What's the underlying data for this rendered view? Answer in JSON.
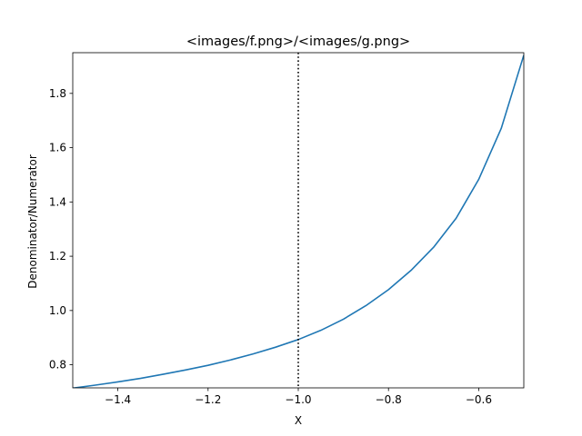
{
  "chart_data": {
    "type": "line",
    "title": "<images/f.png>/<images/g.png>",
    "xlabel": "X",
    "ylabel": "Denominator/Numerator",
    "xlim": [
      -1.5,
      -0.5
    ],
    "ylim": [
      0.715,
      1.95
    ],
    "xticks": [
      -1.4,
      -1.2,
      -1.0,
      -0.8,
      -0.6
    ],
    "xtick_labels": [
      "−1.4",
      "−1.2",
      "−1.0",
      "−0.8",
      "−0.6"
    ],
    "yticks": [
      0.8,
      1.0,
      1.2,
      1.4,
      1.6,
      1.8
    ],
    "ytick_labels": [
      "0.8",
      "1.0",
      "1.2",
      "1.4",
      "1.6",
      "1.8"
    ],
    "grid": false,
    "series": [
      {
        "color": "#1f77b4",
        "x": [
          -1.5,
          -1.45,
          -1.4,
          -1.35,
          -1.3,
          -1.25,
          -1.2,
          -1.15,
          -1.1,
          -1.05,
          -1.0,
          -0.95,
          -0.9,
          -0.85,
          -0.8,
          -0.75,
          -0.7,
          -0.65,
          -0.6,
          -0.55,
          -0.5
        ],
        "y": [
          0.714,
          0.725,
          0.737,
          0.75,
          0.765,
          0.781,
          0.798,
          0.818,
          0.84,
          0.865,
          0.893,
          0.927,
          0.968,
          1.018,
          1.077,
          1.148,
          1.233,
          1.34,
          1.483,
          1.671,
          1.941
        ]
      }
    ],
    "vlines": [
      {
        "x": -1.0,
        "style": "dotted",
        "color": "#000000"
      }
    ]
  }
}
